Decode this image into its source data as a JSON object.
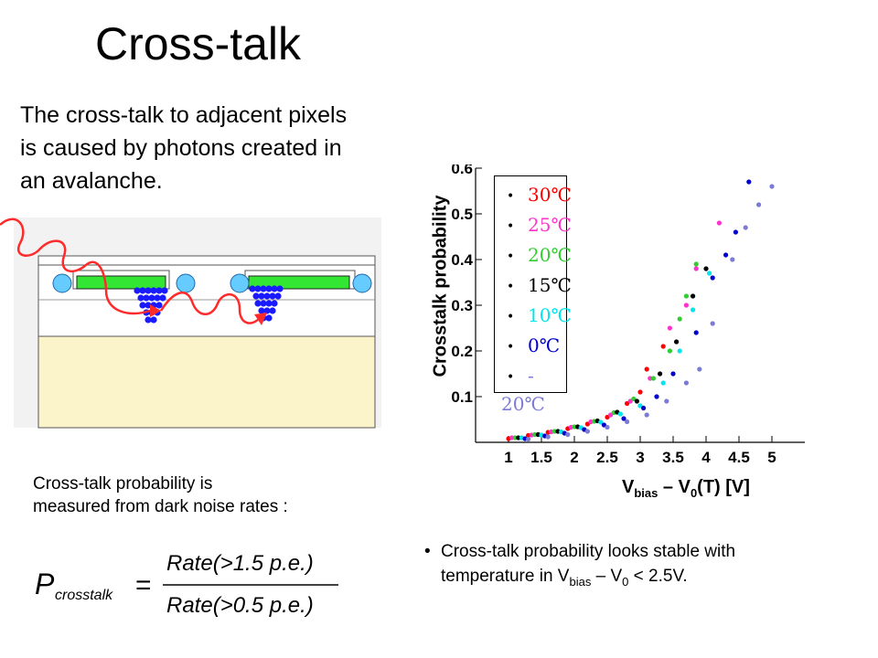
{
  "slide": {
    "title": "Cross-talk",
    "intro_line1": "The cross-talk to adjacent pixels",
    "intro_line2": "is caused by photons created in",
    "intro_line3": "an avalanche.",
    "measure_line1": "Cross-talk probability is",
    "measure_line2": "measured from dark noise rates :",
    "formula_lhs": "P",
    "formula_lhs_sub": "crosstalk",
    "formula_eq": "=",
    "formula_numerator": "Rate(>1.5 p.e.)",
    "formula_denominator": "Rate(>0.5 p.e.)",
    "bullet_symbol": "•",
    "bullet_text_a": "Cross-talk probability looks stable with",
    "bullet_text_b": "temperature in V",
    "bullet_sub_bias": "bias",
    "bullet_text_c": " – V",
    "bullet_sub_zero": "0",
    "bullet_text_d": " < 2.5V."
  },
  "colors": {
    "diagram_bg": "#f2f2f2",
    "diagram_substrate": "#fbf3c9",
    "diagram_green": "#33e633",
    "diagram_circle": "#66ccff",
    "diagram_avalanche": "#1a1aff",
    "diagram_photon": "#ff2a2a"
  },
  "chart_data": {
    "type": "scatter",
    "title": "",
    "xlabel_main": "V",
    "xlabel_sub1": "bias",
    "xlabel_mid": " – V",
    "xlabel_sub2": "0",
    "xlabel_end": "(T) [V]",
    "ylabel": "Crosstalk probability",
    "xlim": [
      0.5,
      5.5
    ],
    "ylim": [
      0.0,
      0.6
    ],
    "xticks": [
      "1",
      "1.5",
      "2",
      "2.5",
      "3",
      "3.5",
      "4",
      "4.5",
      "5"
    ],
    "yticks": [
      "0.1",
      "0.2",
      "0.3",
      "0.4",
      "0.5",
      "0.6"
    ],
    "grid": false,
    "legend_position": "top-left",
    "marker_symbol": "•",
    "series": [
      {
        "name": "30℃",
        "color": "#ff0000",
        "points": [
          [
            1.0,
            0.008
          ],
          [
            1.3,
            0.015
          ],
          [
            1.6,
            0.022
          ],
          [
            1.9,
            0.03
          ],
          [
            2.2,
            0.04
          ],
          [
            2.5,
            0.055
          ],
          [
            2.8,
            0.085
          ],
          [
            3.0,
            0.11
          ],
          [
            3.1,
            0.16
          ],
          [
            3.35,
            0.21
          ]
        ]
      },
      {
        "name": "25℃",
        "color": "#ff33cc",
        "points": [
          [
            1.05,
            0.01
          ],
          [
            1.35,
            0.016
          ],
          [
            1.65,
            0.023
          ],
          [
            1.95,
            0.033
          ],
          [
            2.25,
            0.045
          ],
          [
            2.55,
            0.06
          ],
          [
            2.85,
            0.09
          ],
          [
            3.15,
            0.14
          ],
          [
            3.45,
            0.25
          ],
          [
            3.7,
            0.3
          ],
          [
            3.85,
            0.38
          ],
          [
            4.2,
            0.48
          ]
        ]
      },
      {
        "name": "20℃",
        "color": "#33cc33",
        "points": [
          [
            1.1,
            0.01
          ],
          [
            1.4,
            0.017
          ],
          [
            1.7,
            0.024
          ],
          [
            2.0,
            0.034
          ],
          [
            2.3,
            0.046
          ],
          [
            2.6,
            0.065
          ],
          [
            2.9,
            0.095
          ],
          [
            3.2,
            0.14
          ],
          [
            3.45,
            0.2
          ],
          [
            3.6,
            0.27
          ],
          [
            3.7,
            0.32
          ],
          [
            3.85,
            0.39
          ]
        ]
      },
      {
        "name": "15℃",
        "color": "#000000",
        "points": [
          [
            1.15,
            0.01
          ],
          [
            1.45,
            0.017
          ],
          [
            1.75,
            0.024
          ],
          [
            2.05,
            0.034
          ],
          [
            2.35,
            0.047
          ],
          [
            2.65,
            0.066
          ],
          [
            2.95,
            0.09
          ],
          [
            3.3,
            0.15
          ],
          [
            3.55,
            0.22
          ],
          [
            3.8,
            0.32
          ],
          [
            4.0,
            0.38
          ]
        ]
      },
      {
        "name": "10℃",
        "color": "#00e5ee",
        "points": [
          [
            1.2,
            0.01
          ],
          [
            1.5,
            0.016
          ],
          [
            1.8,
            0.023
          ],
          [
            2.1,
            0.032
          ],
          [
            2.4,
            0.044
          ],
          [
            2.7,
            0.062
          ],
          [
            3.0,
            0.08
          ],
          [
            3.35,
            0.13
          ],
          [
            3.6,
            0.2
          ],
          [
            3.8,
            0.29
          ],
          [
            4.05,
            0.37
          ]
        ]
      },
      {
        "name": "0℃",
        "color": "#0000cc",
        "points": [
          [
            1.25,
            0.008
          ],
          [
            1.55,
            0.014
          ],
          [
            1.85,
            0.02
          ],
          [
            2.15,
            0.028
          ],
          [
            2.45,
            0.038
          ],
          [
            2.75,
            0.052
          ],
          [
            3.05,
            0.075
          ],
          [
            3.25,
            0.1
          ],
          [
            3.5,
            0.15
          ],
          [
            3.85,
            0.24
          ],
          [
            4.1,
            0.36
          ],
          [
            4.3,
            0.41
          ],
          [
            4.45,
            0.46
          ],
          [
            4.65,
            0.57
          ]
        ]
      },
      {
        "name": "-20℃",
        "color": "#7b7bd6",
        "points": [
          [
            1.3,
            0.007
          ],
          [
            1.6,
            0.012
          ],
          [
            1.9,
            0.017
          ],
          [
            2.2,
            0.024
          ],
          [
            2.5,
            0.033
          ],
          [
            2.8,
            0.045
          ],
          [
            3.1,
            0.06
          ],
          [
            3.4,
            0.09
          ],
          [
            3.7,
            0.13
          ],
          [
            3.9,
            0.16
          ],
          [
            4.1,
            0.26
          ],
          [
            4.4,
            0.4
          ],
          [
            4.6,
            0.47
          ],
          [
            4.8,
            0.52
          ],
          [
            5.0,
            0.56
          ]
        ]
      }
    ]
  }
}
